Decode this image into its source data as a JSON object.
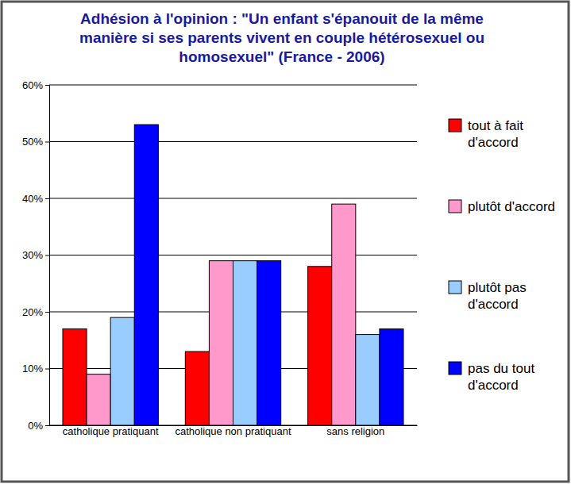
{
  "chart_data": {
    "type": "bar",
    "title": "Adhésion à l'opinion : \"Un enfant s'épanouit de la même manière si ses parents vivent en couple hétérosexuel ou homosexuel\" (France - 2006)",
    "categories": [
      "catholique pratiquant",
      "catholique non pratiquant",
      "sans religion"
    ],
    "series": [
      {
        "name": "tout à fait d'accord",
        "color": "#ff0000",
        "values": [
          17,
          13,
          28
        ]
      },
      {
        "name": "plutôt d'accord",
        "color": "#ff99cc",
        "values": [
          9,
          29,
          39
        ]
      },
      {
        "name": "plutôt pas d'accord",
        "color": "#99ccff",
        "values": [
          19,
          29,
          16
        ]
      },
      {
        "name": "pas du tout d'accord",
        "color": "#0000ff",
        "values": [
          53,
          29,
          17
        ]
      }
    ],
    "ylim": [
      0,
      60
    ],
    "yticks": [
      {
        "value": 0,
        "label": "0%"
      },
      {
        "value": 10,
        "label": "10%"
      },
      {
        "value": 20,
        "label": "20%"
      },
      {
        "value": 30,
        "label": "30%"
      },
      {
        "value": 40,
        "label": "40%"
      },
      {
        "value": 50,
        "label": "50%"
      },
      {
        "value": 60,
        "label": "60%"
      }
    ],
    "grid": true,
    "legend": "right"
  }
}
